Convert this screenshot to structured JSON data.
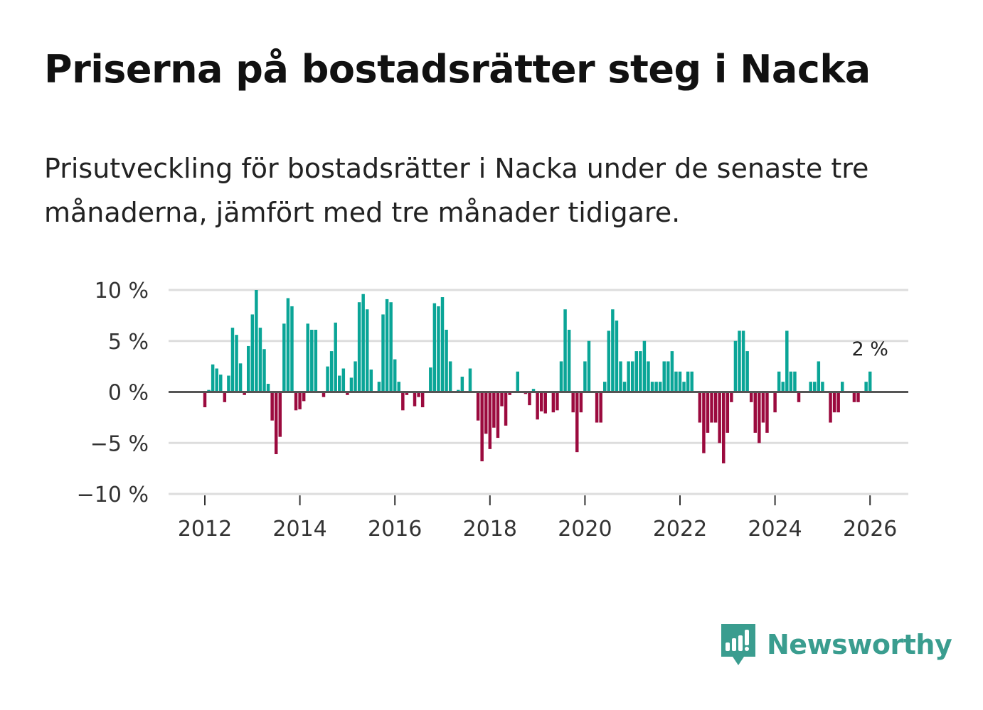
{
  "title": "Priserna på bostadsrätter steg i Nacka",
  "subtitle": "Prisutveckling för bostadsrätter i Nacka under de senaste tre månaderna, jämfört med tre månader tidigare.",
  "brand": "Newsworthy",
  "colors": {
    "positive": "#0aa597",
    "negative": "#9b0a3e",
    "grid": "#dddddd",
    "zero": "#555555",
    "brand": "#3a9d8f"
  },
  "chart_data": {
    "type": "bar",
    "start": "2012-01",
    "frequency": "monthly",
    "ylim": [
      -10,
      10
    ],
    "yticks": [
      10,
      5,
      0,
      -5,
      -10
    ],
    "ytick_labels": [
      "10 %",
      "5 %",
      "0 %",
      "−5 %",
      "−10 %"
    ],
    "xticks": [
      2012,
      2014,
      2016,
      2018,
      2020,
      2022,
      2024,
      2026
    ],
    "xtick_labels": [
      "2012",
      "2014",
      "2016",
      "2018",
      "2020",
      "2022",
      "2024",
      "2026"
    ],
    "last_value_label": "2 %",
    "ylabel": "",
    "xlabel": "",
    "values": [
      -1.5,
      0.2,
      2.7,
      2.3,
      1.7,
      -1.0,
      1.6,
      6.3,
      5.6,
      2.8,
      -0.3,
      4.5,
      7.6,
      10.0,
      6.3,
      4.2,
      0.8,
      -2.8,
      -6.1,
      -4.4,
      6.7,
      9.2,
      8.4,
      -1.8,
      -1.7,
      -0.9,
      6.7,
      6.1,
      6.1,
      0.0,
      -0.5,
      2.5,
      4.0,
      6.8,
      1.6,
      2.3,
      -0.3,
      1.4,
      3.0,
      8.8,
      9.6,
      8.1,
      2.2,
      0.0,
      1.0,
      7.6,
      9.1,
      8.8,
      3.2,
      1.0,
      -1.8,
      -0.3,
      0.0,
      -1.4,
      -0.5,
      -1.5,
      0.0,
      2.4,
      8.7,
      8.4,
      9.3,
      6.1,
      3.0,
      0.0,
      0.2,
      1.5,
      0.0,
      2.3,
      0.0,
      -2.8,
      -6.8,
      -4.1,
      -5.6,
      -3.5,
      -4.5,
      -1.4,
      -3.3,
      -0.3,
      0.0,
      2.0,
      -0.1,
      -0.2,
      -1.3,
      0.3,
      -2.7,
      -1.9,
      -2.1,
      0.0,
      -2.0,
      -1.8,
      3.0,
      8.1,
      6.1,
      -2.0,
      -5.9,
      -2.0,
      3.0,
      5.0,
      0.0,
      -3.0,
      -3.0,
      1.0,
      6.0,
      8.1,
      7.0,
      3.0,
      1.0,
      3.0,
      3.0,
      4.0,
      4.0,
      5.0,
      3.0,
      1.0,
      1.0,
      1.0,
      3.0,
      3.0,
      4.0,
      2.0,
      2.0,
      1.0,
      2.0,
      2.0,
      0.0,
      -3.0,
      -6.0,
      -4.0,
      -3.0,
      -3.0,
      -5.0,
      -7.0,
      -4.0,
      -1.0,
      5.0,
      6.0,
      6.0,
      4.0,
      -1.0,
      -4.0,
      -5.0,
      -3.0,
      -4.0,
      0.0,
      -2.0,
      2.0,
      1.0,
      6.0,
      2.0,
      2.0,
      -1.0,
      0.0,
      0.0,
      1.0,
      1.0,
      3.0,
      1.0,
      0.0,
      -3.0,
      -2.0,
      -2.0,
      1.0,
      0.0,
      0.0,
      -1.0,
      -1.0,
      0.0,
      1.0,
      2.0
    ]
  }
}
